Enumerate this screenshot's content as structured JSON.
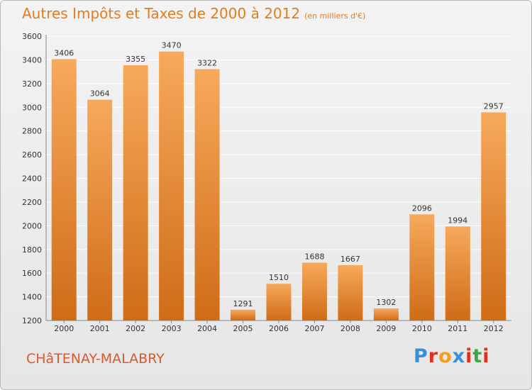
{
  "header": {
    "title": "Autres Impôts et Taxes de 2000 à 2012",
    "subtitle": "(en milliers d'€)"
  },
  "footer": {
    "city": "CHâTENAY-MALABRY",
    "logo_text": "Proxiti",
    "logo_letter_colors": [
      "#3b8fd9",
      "#e0301e",
      "#f0a020",
      "#3b8fd9",
      "#e0301e",
      "#3aa845",
      "#e0301e"
    ]
  },
  "colors": {
    "bar_light": "#f7a95c",
    "bar_dark": "#cf6c17",
    "grid": "#ffffff",
    "text": "#333333",
    "title": "#e07d1f",
    "city": "#d85a2c"
  },
  "chart_data": {
    "type": "bar",
    "categories": [
      "2000",
      "2001",
      "2002",
      "2003",
      "2004",
      "2005",
      "2006",
      "2007",
      "2008",
      "2009",
      "2010",
      "2011",
      "2012"
    ],
    "values": [
      3406,
      3064,
      3355,
      3470,
      3322,
      1291,
      1510,
      1688,
      1667,
      1302,
      2096,
      1994,
      2957
    ],
    "yticks": [
      1200,
      1400,
      1600,
      1800,
      2000,
      2200,
      2400,
      2600,
      2800,
      3000,
      3200,
      3400,
      3600
    ],
    "ylim": [
      1200,
      3600
    ],
    "grid": true,
    "xlabel": "",
    "ylabel": ""
  }
}
